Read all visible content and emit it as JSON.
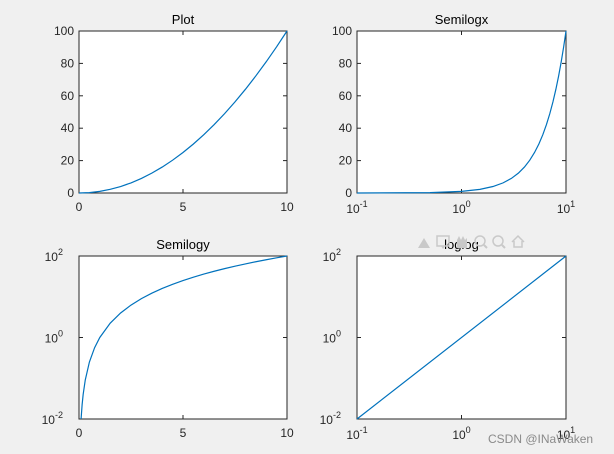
{
  "colors": {
    "line": "#0072BD",
    "toolbar": "#c9c9c9"
  },
  "toolbar_icons": [
    "brush-icon",
    "data-tips-icon",
    "pan-icon",
    "zoom-in-icon",
    "zoom-out-icon",
    "home-icon"
  ],
  "watermark": "CSDN @INaWaken",
  "chart_data": [
    {
      "type": "line",
      "title": "Plot",
      "xscale": "linear",
      "yscale": "linear",
      "xlim": [
        0,
        10
      ],
      "ylim": [
        0,
        100
      ],
      "xticks": [
        0,
        5,
        10
      ],
      "yticks": [
        0,
        20,
        40,
        60,
        80,
        100
      ],
      "x": [
        0,
        0.5,
        1,
        1.5,
        2,
        2.5,
        3,
        3.5,
        4,
        4.5,
        5,
        5.5,
        6,
        6.5,
        7,
        7.5,
        8,
        8.5,
        9,
        9.5,
        10
      ],
      "y": [
        0,
        0.25,
        1,
        2.25,
        4,
        6.25,
        9,
        12.25,
        16,
        20.25,
        25,
        30.25,
        36,
        42.25,
        49,
        56.25,
        64,
        72.25,
        81,
        90.25,
        100
      ]
    },
    {
      "type": "line",
      "title": "Semilogx",
      "xscale": "log",
      "yscale": "linear",
      "xlim": [
        0.1,
        10
      ],
      "ylim": [
        0,
        100
      ],
      "xticks": [
        0.1,
        1,
        10
      ],
      "xtick_labels": [
        [
          "10",
          "-1"
        ],
        [
          "10",
          "0"
        ],
        [
          "10",
          "1"
        ]
      ],
      "yticks": [
        0,
        20,
        40,
        60,
        80,
        100
      ],
      "x": [
        0.1,
        0.5,
        1,
        1.5,
        2,
        2.5,
        3,
        3.5,
        4,
        4.5,
        5,
        5.5,
        6,
        6.5,
        7,
        7.5,
        8,
        8.5,
        9,
        9.5,
        10
      ],
      "y": [
        0.01,
        0.25,
        1,
        2.25,
        4,
        6.25,
        9,
        12.25,
        16,
        20.25,
        25,
        30.25,
        36,
        42.25,
        49,
        56.25,
        64,
        72.25,
        81,
        90.25,
        100
      ]
    },
    {
      "type": "line",
      "title": "Semilogy",
      "xscale": "linear",
      "yscale": "log",
      "xlim": [
        0,
        10
      ],
      "ylim": [
        0.01,
        100
      ],
      "xticks": [
        0,
        5,
        10
      ],
      "yticks": [
        0.01,
        1,
        100
      ],
      "ytick_labels": [
        [
          "10",
          "-2"
        ],
        [
          "10",
          "0"
        ],
        [
          "10",
          "2"
        ]
      ],
      "x": [
        0.1,
        0.15,
        0.2,
        0.3,
        0.5,
        0.75,
        1,
        1.5,
        2,
        2.5,
        3,
        3.5,
        4,
        4.5,
        5,
        5.5,
        6,
        6.5,
        7,
        7.5,
        8,
        8.5,
        9,
        9.5,
        10
      ],
      "y": [
        0.01,
        0.0225,
        0.04,
        0.09,
        0.25,
        0.5625,
        1,
        2.25,
        4,
        6.25,
        9,
        12.25,
        16,
        20.25,
        25,
        30.25,
        36,
        42.25,
        49,
        56.25,
        64,
        72.25,
        81,
        90.25,
        100
      ]
    },
    {
      "type": "line",
      "title": "loglog",
      "xscale": "log",
      "yscale": "log",
      "xlim": [
        0.1,
        10
      ],
      "ylim": [
        0.01,
        100
      ],
      "xticks": [
        0.1,
        1,
        10
      ],
      "xtick_labels": [
        [
          "10",
          "-1"
        ],
        [
          "10",
          "0"
        ],
        [
          "10",
          "1"
        ]
      ],
      "yticks": [
        0.01,
        1,
        100
      ],
      "ytick_labels": [
        [
          "10",
          "-2"
        ],
        [
          "10",
          "0"
        ],
        [
          "10",
          "2"
        ]
      ],
      "x": [
        0.1,
        10
      ],
      "y": [
        0.01,
        100
      ]
    }
  ]
}
